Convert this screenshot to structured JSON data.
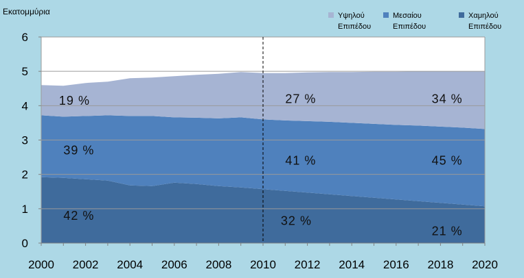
{
  "chart_data": {
    "type": "area",
    "stacked": true,
    "ylabel": "Εκατομμύρια",
    "ylim": [
      0,
      6
    ],
    "yticks": [
      0,
      1,
      2,
      3,
      4,
      5,
      6
    ],
    "xlim": [
      2000,
      2020
    ],
    "xticks": [
      2000,
      2002,
      2004,
      2006,
      2008,
      2010,
      2012,
      2014,
      2016,
      2018,
      2020
    ],
    "x": [
      2000,
      2001,
      2002,
      2003,
      2004,
      2005,
      2006,
      2007,
      2008,
      2009,
      2010,
      2011,
      2012,
      2013,
      2014,
      2015,
      2016,
      2017,
      2018,
      2019,
      2020
    ],
    "grid_y": true,
    "vertical_marker": {
      "x": 2010,
      "style": "dashed"
    },
    "legend_position": "top-right",
    "series": [
      {
        "name": "Χαμηλού Επιπέδου",
        "color": "#3f6b9c",
        "values": [
          1.92,
          1.9,
          1.86,
          1.82,
          1.68,
          1.66,
          1.76,
          1.72,
          1.66,
          1.62,
          1.57,
          1.52,
          1.47,
          1.42,
          1.37,
          1.32,
          1.27,
          1.22,
          1.17,
          1.12,
          1.07
        ]
      },
      {
        "name": "Μεσαίου Επιπέδου",
        "color": "#4f81bd",
        "values": [
          1.8,
          1.78,
          1.84,
          1.9,
          2.02,
          2.04,
          1.9,
          1.93,
          1.97,
          2.04,
          2.03,
          2.05,
          2.08,
          2.11,
          2.13,
          2.15,
          2.17,
          2.2,
          2.22,
          2.24,
          2.25
        ]
      },
      {
        "name": "Υψηλού Επιπέδου",
        "color": "#a6b4d3",
        "values": [
          0.88,
          0.9,
          0.96,
          0.98,
          1.1,
          1.12,
          1.2,
          1.25,
          1.3,
          1.32,
          1.35,
          1.38,
          1.42,
          1.45,
          1.48,
          1.52,
          1.55,
          1.58,
          1.61,
          1.64,
          1.68
        ]
      }
    ],
    "annotations": [
      {
        "text": "42 %",
        "x": 2001.7,
        "y": 0.8
      },
      {
        "text": "39 %",
        "x": 2001.7,
        "y": 2.7
      },
      {
        "text": "19 %",
        "x": 2001.5,
        "y": 4.15
      },
      {
        "text": "32 %",
        "x": 2011.5,
        "y": 0.65
      },
      {
        "text": "41 %",
        "x": 2011.7,
        "y": 2.4
      },
      {
        "text": "27 %",
        "x": 2011.7,
        "y": 4.2
      },
      {
        "text": "21 %",
        "x": 2018.3,
        "y": 0.35
      },
      {
        "text": "45 %",
        "x": 2018.3,
        "y": 2.4
      },
      {
        "text": "34 %",
        "x": 2018.3,
        "y": 4.2
      }
    ]
  }
}
